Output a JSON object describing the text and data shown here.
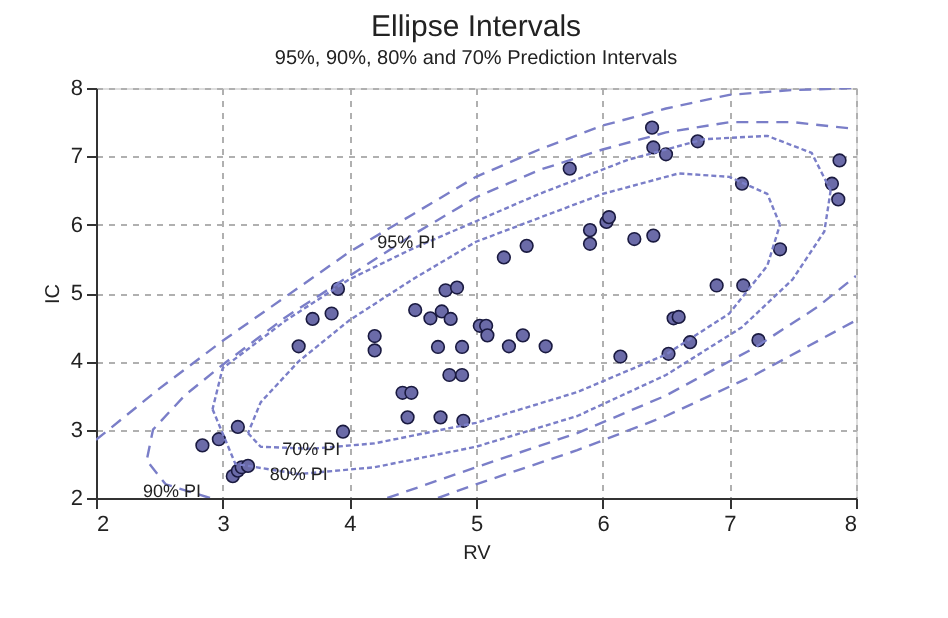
{
  "chart_data": {
    "type": "scatter",
    "title": "Ellipse Intervals",
    "subtitle": "95%, 90%, 80% and 70% Prediction Intervals",
    "xlabel": "RV",
    "ylabel": "IC",
    "xlim": [
      2,
      8
    ],
    "ylim": [
      2,
      8
    ],
    "xticks": [
      2,
      3,
      4,
      5,
      6,
      7,
      8
    ],
    "yticks": [
      2,
      3,
      4,
      5,
      6,
      7,
      8
    ],
    "grid": true,
    "series": [
      {
        "marker": "circle",
        "color": "#6b6ba8",
        "x": [
          2.84,
          2.97,
          3.12,
          3.08,
          3.12,
          3.15,
          3.2,
          3.95,
          3.6,
          3.71,
          3.86,
          3.91,
          4.2,
          4.2,
          4.52,
          4.64,
          4.76,
          4.85,
          4.73,
          4.8,
          4.7,
          4.89,
          4.79,
          4.89,
          4.42,
          4.49,
          4.46,
          4.72,
          4.9,
          5.03,
          5.08,
          5.09,
          5.26,
          5.37,
          5.55,
          5.22,
          5.4,
          5.74,
          5.9,
          5.9,
          6.03,
          6.05,
          6.25,
          6.4,
          6.39,
          6.4,
          6.5,
          6.75,
          7.1,
          6.9,
          7.11,
          6.56,
          6.6,
          6.69,
          6.52,
          6.14,
          7.23,
          7.4,
          7.87,
          7.81,
          7.86
        ],
        "values": [
          2.77,
          2.86,
          3.04,
          2.32,
          2.4,
          2.45,
          2.47,
          2.97,
          4.22,
          4.62,
          4.7,
          5.06,
          4.37,
          4.16,
          4.75,
          4.63,
          5.04,
          5.08,
          4.73,
          4.62,
          4.21,
          4.21,
          3.8,
          3.8,
          3.54,
          3.54,
          3.18,
          3.18,
          3.13,
          4.52,
          4.52,
          4.38,
          4.22,
          4.38,
          4.22,
          5.52,
          5.69,
          6.82,
          5.92,
          5.72,
          6.04,
          6.11,
          5.79,
          5.84,
          7.42,
          7.13,
          7.03,
          7.22,
          6.6,
          5.11,
          5.11,
          4.63,
          4.65,
          4.28,
          4.11,
          4.07,
          4.31,
          5.64,
          6.94,
          6.6,
          6.37
        ]
      },
      {
        "type": "line",
        "line_style": "dashed",
        "color": "#7a7ec8",
        "x": [
          2.0,
          2.5,
          3.0,
          3.5,
          4.0,
          4.5,
          5.0,
          5.5,
          6.0,
          6.5,
          7.0,
          7.5,
          8.0,
          null,
          4.7,
          5.0,
          5.8,
          6.5,
          7.2,
          8.0
        ],
        "values": [
          2.85,
          3.6,
          4.3,
          4.95,
          5.6,
          6.15,
          6.7,
          7.1,
          7.45,
          7.7,
          7.9,
          7.97,
          8.0,
          null,
          2.0,
          2.2,
          2.7,
          3.2,
          3.8,
          4.6
        ]
      },
      {
        "type": "line",
        "line_style": "dashed",
        "color": "#7a7ec8",
        "x": [
          2.9,
          2.55,
          2.4,
          2.45,
          2.7,
          3.0,
          3.5,
          4.0,
          4.5,
          5.0,
          5.5,
          6.0,
          6.5,
          7.0,
          7.5,
          8.0,
          null,
          4.3,
          5.0,
          5.8,
          6.5,
          7.2,
          7.7,
          8.0
        ],
        "values": [
          2.0,
          2.2,
          2.55,
          3.0,
          3.5,
          3.95,
          4.65,
          5.25,
          5.85,
          6.4,
          6.8,
          7.1,
          7.35,
          7.5,
          7.5,
          7.4,
          null,
          2.0,
          2.45,
          2.95,
          3.5,
          4.2,
          4.8,
          5.25
        ]
      },
      {
        "type": "line",
        "line_style": "dotted",
        "color": "#7a7ec8",
        "x": [
          2.92,
          3.1,
          3.6,
          4.2,
          5.0,
          5.8,
          6.5,
          7.1,
          7.5,
          7.75,
          7.8,
          null,
          7.8,
          7.65,
          7.3,
          6.8,
          6.2,
          5.5,
          5.0,
          4.5,
          4.0,
          3.5,
          3.0,
          2.92
        ],
        "values": [
          3.3,
          2.5,
          2.35,
          2.45,
          2.75,
          3.2,
          3.8,
          4.5,
          5.2,
          5.9,
          6.5,
          null,
          6.5,
          7.05,
          7.3,
          7.25,
          6.95,
          6.45,
          6.05,
          5.65,
          5.2,
          4.6,
          3.9,
          3.3
        ]
      },
      {
        "type": "line",
        "line_style": "dotted",
        "color": "#7a7ec8",
        "x": [
          3.2,
          3.3,
          3.7,
          4.2,
          5.0,
          5.8,
          6.5,
          7.0,
          7.3,
          7.4,
          null,
          7.4,
          7.3,
          7.0,
          6.6,
          6.0,
          5.5,
          5.0,
          4.5,
          4.0,
          3.6,
          3.3,
          3.2
        ],
        "values": [
          2.95,
          2.75,
          2.72,
          2.8,
          3.1,
          3.55,
          4.1,
          4.7,
          5.4,
          6.0,
          null,
          6.0,
          6.45,
          6.7,
          6.75,
          6.45,
          6.1,
          5.75,
          5.2,
          4.6,
          4.0,
          3.4,
          2.95
        ]
      }
    ],
    "annotations": [
      {
        "text": "95% PI",
        "x": 4.45,
        "y": 5.75
      },
      {
        "text": "70% PI",
        "x": 3.7,
        "y": 2.72
      },
      {
        "text": "80% PI",
        "x": 3.6,
        "y": 2.35
      },
      {
        "text": "90% PI",
        "x": 2.6,
        "y": 2.1
      }
    ]
  }
}
